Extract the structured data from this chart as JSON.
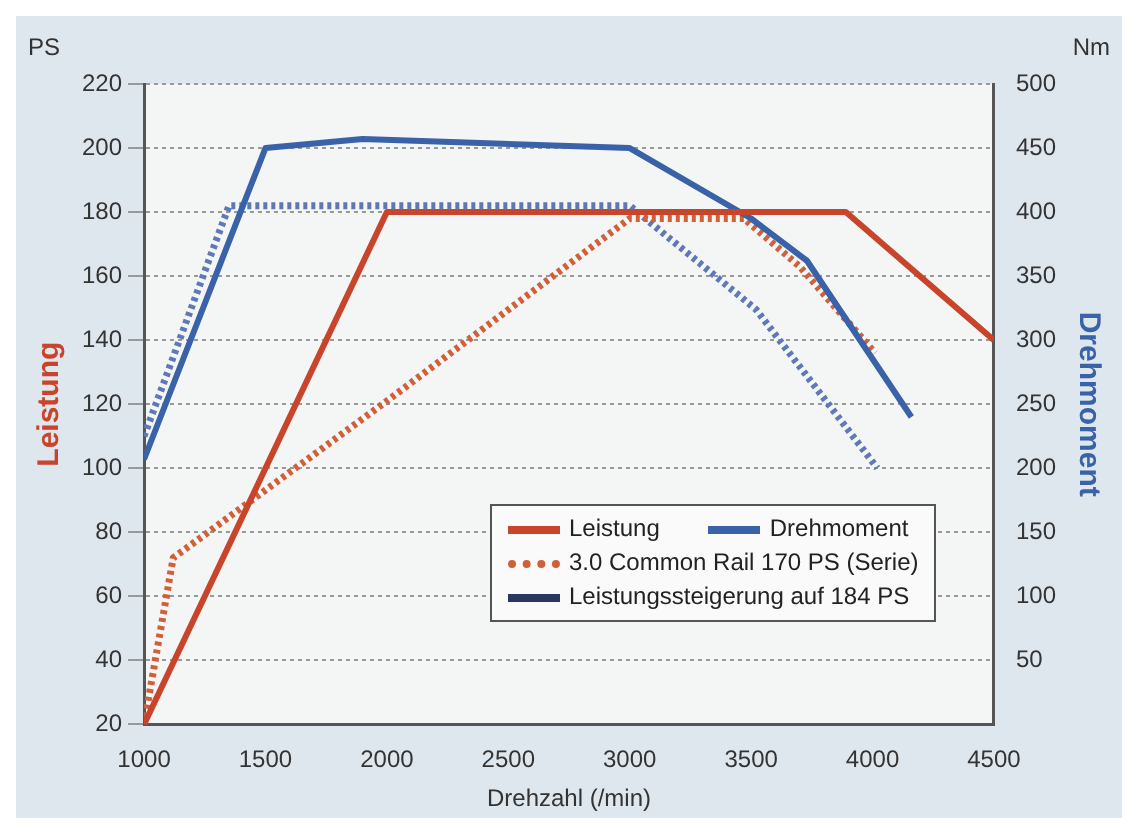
{
  "chart_data": {
    "type": "line",
    "xlabel": "Drehzahl (/min)",
    "ylabel": "Leistung",
    "y2label": "Drehmoment",
    "xlim": [
      1000,
      4500
    ],
    "xticks": [
      1000,
      1500,
      2000,
      2500,
      3000,
      3500,
      4000,
      4500
    ],
    "ylim": [
      20,
      220
    ],
    "yticks": [
      20,
      40,
      60,
      80,
      100,
      120,
      140,
      160,
      180,
      200,
      220
    ],
    "y2lim": [
      0,
      500
    ],
    "y2ticks": [
      50,
      100,
      150,
      200,
      250,
      300,
      350,
      400,
      450,
      500
    ],
    "grid": "y",
    "legend": "bottom",
    "marker": "none",
    "annotations": [
      "PS",
      "Nm",
      "Leistungssteigerung auf 184 PS"
    ],
    "series": [
      {
        "name": "Leistung",
        "color": "#c8442a",
        "line_style": "solid",
        "x": [
          1000,
          2000,
          3000,
          3890,
          4500
        ],
        "values": [
          20,
          180,
          180,
          180,
          140
        ]
      },
      {
        "name": "Drehmoment",
        "color": "#3a62a8",
        "line_style": "solid",
        "axis": "y2",
        "x": [
          1000,
          1500,
          1900,
          3000,
          3500,
          3730,
          4160
        ],
        "values": [
          207,
          450,
          457,
          450,
          395,
          362,
          240
        ]
      },
      {
        "name": "3.0 Common Rail 170 PS (Serie)",
        "color": "#d0603a",
        "line_style": "dotted",
        "x": [
          1000,
          1120,
          2000,
          3000,
          3470,
          3700,
          4010
        ],
        "values": [
          20,
          72,
          121,
          178,
          178,
          163,
          136
        ]
      },
      {
        "color": "#5f78b8",
        "line_style": "dotted",
        "axis": "y2",
        "x": [
          1000,
          1350,
          3000,
          3520,
          4020
        ],
        "values": [
          225,
          405,
          405,
          324,
          200
        ]
      }
    ]
  }
}
